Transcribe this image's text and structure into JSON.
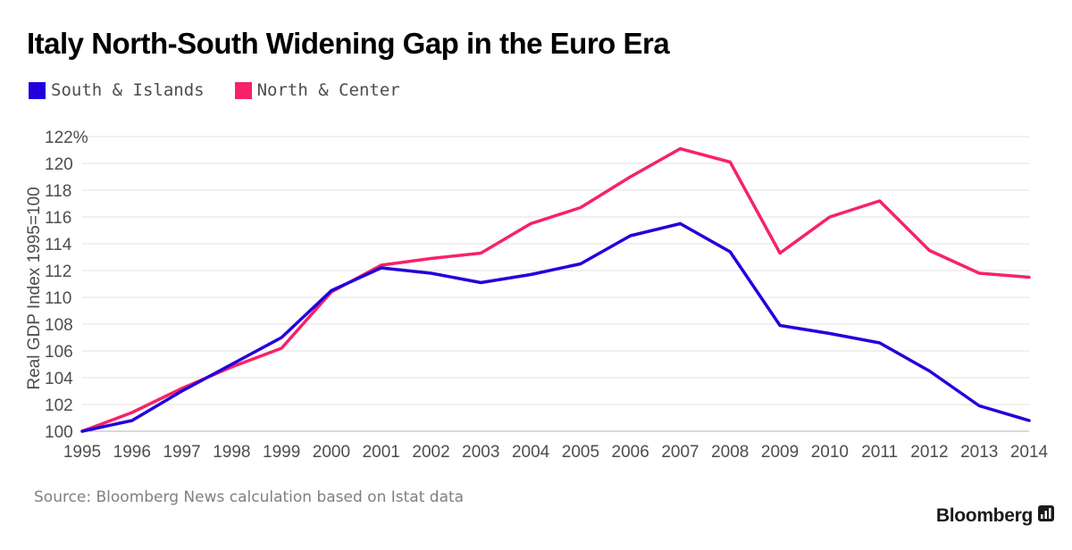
{
  "title": "Italy North-South Widening Gap in the Euro Era",
  "legend": [
    {
      "label": "South & Islands",
      "color": "#2200dd"
    },
    {
      "label": "North & Center",
      "color": "#f72267"
    }
  ],
  "source": "Source: Bloomberg News calculation based on Istat data",
  "brand": "Bloomberg",
  "chart_data": {
    "type": "line",
    "title": "Italy North-South Widening Gap in the Euro Era",
    "xlabel": "",
    "ylabel": "Real GDP Index 1995=100",
    "x": [
      "1995",
      "1996",
      "1997",
      "1998",
      "1999",
      "2000",
      "2001",
      "2002",
      "2003",
      "2004",
      "2005",
      "2006",
      "2007",
      "2008",
      "2009",
      "2010",
      "2011",
      "2012",
      "2013",
      "2014"
    ],
    "ylim": [
      100,
      122
    ],
    "yticks": [
      "100",
      "102",
      "104",
      "106",
      "108",
      "110",
      "112",
      "114",
      "116",
      "118",
      "120",
      "122%"
    ],
    "grid": true,
    "legend_position": "top-left",
    "series": [
      {
        "name": "South & Islands",
        "color": "#2200dd",
        "values": [
          100.0,
          100.8,
          103.0,
          105.0,
          107.0,
          110.5,
          112.2,
          111.8,
          111.1,
          111.7,
          112.5,
          114.6,
          115.5,
          113.4,
          107.9,
          107.3,
          106.6,
          104.5,
          101.9,
          100.8
        ]
      },
      {
        "name": "North & Center",
        "color": "#f72267",
        "values": [
          100.0,
          101.4,
          103.2,
          104.8,
          106.2,
          110.4,
          112.4,
          112.9,
          113.3,
          115.5,
          116.7,
          119.0,
          121.1,
          120.1,
          113.3,
          116.0,
          117.2,
          113.5,
          111.8,
          111.5
        ]
      }
    ]
  }
}
